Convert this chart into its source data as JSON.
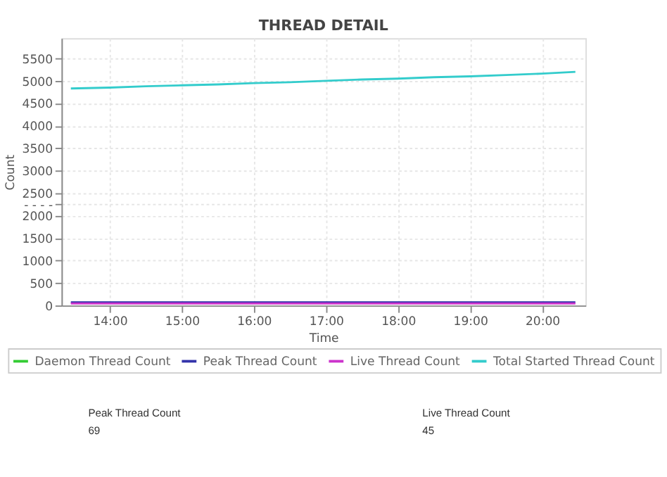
{
  "chart_data": {
    "type": "line",
    "title": "THREAD DETAIL",
    "xlabel": "Time",
    "ylabel": "Count",
    "x": [
      13.46,
      14,
      14.5,
      15,
      15.5,
      16,
      16.5,
      17,
      17.5,
      18,
      18.5,
      19,
      19.5,
      20,
      20.46
    ],
    "series": [
      {
        "name": "Daemon Thread Count",
        "color": "#33cc33",
        "values": [
          null,
          null,
          null,
          null,
          null,
          null,
          null,
          null,
          null,
          null,
          null,
          null,
          null,
          null,
          null
        ]
      },
      {
        "name": "Peak Thread Count",
        "color": "#3333aa",
        "values": [
          69,
          69,
          69,
          69,
          69,
          69,
          69,
          69,
          69,
          69,
          69,
          69,
          69,
          69,
          69
        ]
      },
      {
        "name": "Live Thread Count",
        "color": "#cc33cc",
        "values": [
          45,
          45,
          45,
          45,
          45,
          45,
          45,
          45,
          45,
          45,
          45,
          45,
          45,
          45,
          45
        ]
      },
      {
        "name": "Total Started Thread Count",
        "color": "#33cccc",
        "values": [
          4830,
          4850,
          4880,
          4900,
          4920,
          4950,
          4970,
          5000,
          5030,
          5050,
          5080,
          5100,
          5130,
          5160,
          5200
        ]
      }
    ],
    "xlim": [
      13.33,
      20.6
    ],
    "xticks": [
      {
        "value": 14,
        "label": "14:00"
      },
      {
        "value": 15,
        "label": "15:00"
      },
      {
        "value": 16,
        "label": "16:00"
      },
      {
        "value": 17,
        "label": "17:00"
      },
      {
        "value": 18,
        "label": "18:00"
      },
      {
        "value": 19,
        "label": "19:00"
      },
      {
        "value": 20,
        "label": "20:00"
      }
    ],
    "ylim": [
      0,
      5950
    ],
    "yticks": [
      0,
      500,
      1000,
      1500,
      2000,
      {
        "value": 2250,
        "label": "- - - -"
      },
      2500,
      3000,
      3500,
      4000,
      4500,
      5000,
      5500
    ],
    "grid": true,
    "legend": "bottom",
    "marker": "none",
    "line_style": "solid",
    "annotations": [
      "Peak Thread Count",
      "69",
      "Live Thread Count",
      "45"
    ]
  }
}
